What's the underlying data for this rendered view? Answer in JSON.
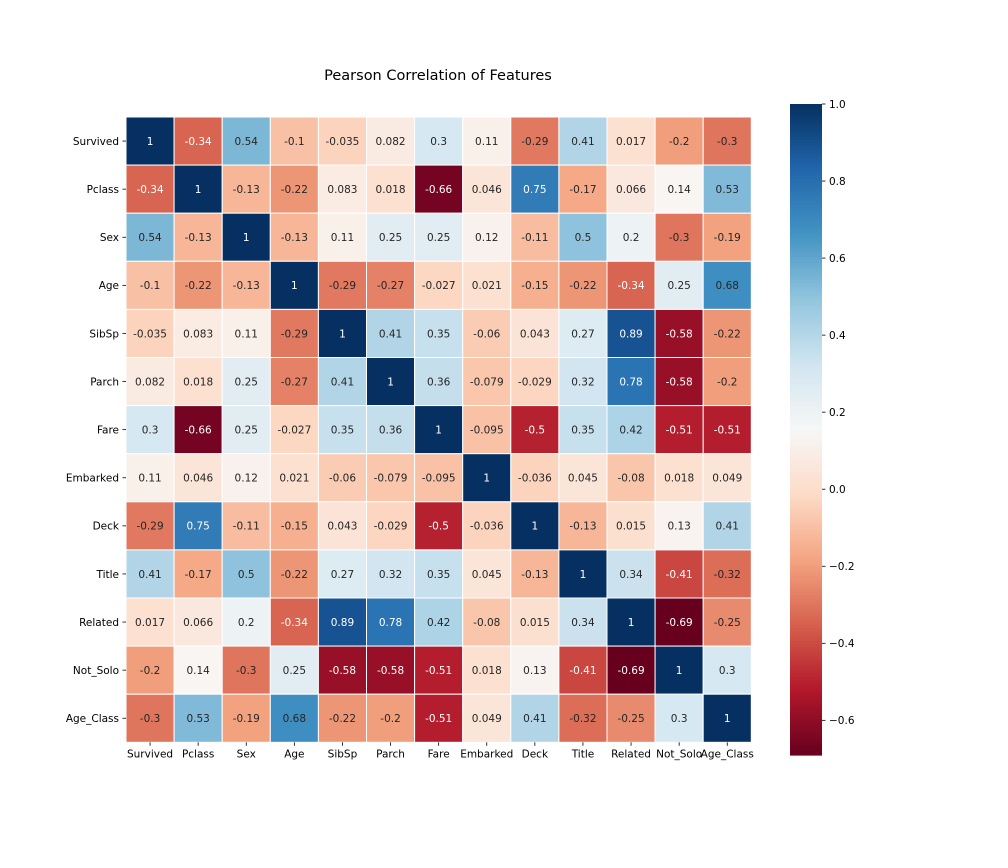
{
  "chart_data": {
    "type": "heatmap",
    "title": "Pearson Correlation of Features",
    "xlabel": "",
    "ylabel": "",
    "labels": [
      "Survived",
      "Pclass",
      "Sex",
      "Age",
      "SibSp",
      "Parch",
      "Fare",
      "Embarked",
      "Deck",
      "Title",
      "Related",
      "Not_Solo",
      "Age_Class"
    ],
    "values": [
      [
        1,
        -0.34,
        0.54,
        -0.1,
        -0.035,
        0.082,
        0.3,
        0.11,
        -0.29,
        0.41,
        0.017,
        -0.2,
        -0.3
      ],
      [
        -0.34,
        1,
        -0.13,
        -0.22,
        0.083,
        0.018,
        -0.66,
        0.046,
        0.75,
        -0.17,
        0.066,
        0.14,
        0.53
      ],
      [
        0.54,
        -0.13,
        1,
        -0.13,
        0.11,
        0.25,
        0.25,
        0.12,
        -0.11,
        0.5,
        0.2,
        -0.3,
        -0.19
      ],
      [
        -0.1,
        -0.22,
        -0.13,
        1,
        -0.29,
        -0.27,
        -0.027,
        0.021,
        -0.15,
        -0.22,
        -0.34,
        0.25,
        0.68
      ],
      [
        -0.035,
        0.083,
        0.11,
        -0.29,
        1,
        0.41,
        0.35,
        -0.06,
        0.043,
        0.27,
        0.89,
        -0.58,
        -0.22
      ],
      [
        0.082,
        0.018,
        0.25,
        -0.27,
        0.41,
        1,
        0.36,
        -0.079,
        -0.029,
        0.32,
        0.78,
        -0.58,
        -0.2
      ],
      [
        0.3,
        -0.66,
        0.25,
        -0.027,
        0.35,
        0.36,
        1,
        -0.095,
        -0.5,
        0.35,
        0.42,
        -0.51,
        -0.51
      ],
      [
        0.11,
        0.046,
        0.12,
        0.021,
        -0.06,
        -0.079,
        -0.095,
        1,
        -0.036,
        0.045,
        -0.08,
        0.018,
        0.049
      ],
      [
        -0.29,
        0.75,
        -0.11,
        -0.15,
        0.043,
        -0.029,
        -0.5,
        -0.036,
        1,
        -0.13,
        0.015,
        0.13,
        0.41
      ],
      [
        0.41,
        -0.17,
        0.5,
        -0.22,
        0.27,
        0.32,
        0.35,
        0.045,
        -0.13,
        1,
        0.34,
        -0.41,
        -0.32
      ],
      [
        0.017,
        0.066,
        0.2,
        -0.34,
        0.89,
        0.78,
        0.42,
        -0.08,
        0.015,
        0.34,
        1,
        -0.69,
        -0.25
      ],
      [
        -0.2,
        0.14,
        -0.3,
        0.25,
        -0.58,
        -0.58,
        -0.51,
        0.018,
        0.13,
        -0.41,
        -0.69,
        1,
        0.3
      ],
      [
        -0.3,
        0.53,
        -0.19,
        0.68,
        -0.22,
        -0.2,
        -0.51,
        0.049,
        0.41,
        -0.32,
        -0.25,
        0.3,
        1
      ]
    ],
    "vmin": -0.69,
    "vmax": 1.0,
    "colormap": "RdBu",
    "colorbar_ticks": [
      1.0,
      0.8,
      0.6,
      0.4,
      0.2,
      0.0,
      -0.2,
      -0.4,
      -0.6
    ],
    "colorbar_tick_labels": [
      "1.0",
      "0.8",
      "0.6",
      "0.4",
      "0.2",
      "0.0",
      "−0.2",
      "−0.4",
      "−0.6"
    ],
    "annotations": true,
    "grid": false
  }
}
